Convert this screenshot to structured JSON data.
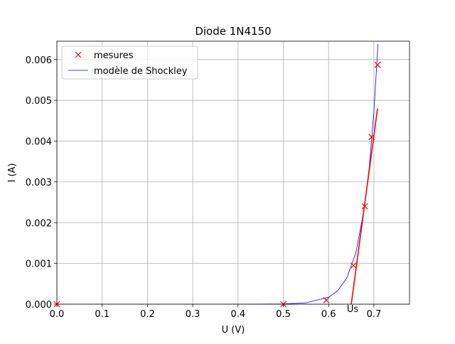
{
  "chart_data": {
    "type": "line",
    "title": "Diode 1N4150",
    "xlabel": "U (V)",
    "ylabel": "I (A)",
    "xlim": [
      0,
      0.7786
    ],
    "ylim": [
      0,
      0.00645
    ],
    "xticks": [
      {
        "value": 0,
        "label": "0.0"
      },
      0.1,
      0.2,
      0.3,
      0.4,
      0.5,
      0.6,
      0.7
    ],
    "yticks": [
      {
        "value": 0,
        "label": "0.000"
      },
      0.001,
      0.002,
      0.003,
      0.004,
      0.005,
      0.006
    ],
    "grid": true,
    "legend": "upper left",
    "series": [
      {
        "name": "mesures",
        "color": "#ff0000",
        "marker": "x",
        "line": false,
        "x": [
          0,
          0.5,
          0.595,
          0.655,
          0.68,
          0.695,
          0.708
        ],
        "values": [
          0,
          0,
          0.0001,
          0.00095,
          0.0024,
          0.0041,
          0.00587
        ]
      },
      {
        "name": "modèle de Shockley",
        "color": "#0000ff",
        "marker": null,
        "line": true,
        "width": 0.8,
        "x": [
          0,
          0.1,
          0.2,
          0.3,
          0.4,
          0.5,
          0.55,
          0.6,
          0.62,
          0.64,
          0.66,
          0.68,
          0.69,
          0.7,
          0.709
        ],
        "values": [
          0,
          0,
          0,
          0,
          0,
          6e-06,
          3.2e-05,
          0.00017,
          0.00033,
          0.00064,
          0.00125,
          0.00243,
          0.00339,
          0.00472,
          0.00638
        ]
      },
      {
        "color": "#ff0000",
        "marker": null,
        "line": true,
        "width": 1.6,
        "x": [
          0.65,
          0.708
        ],
        "values": [
          0,
          0.0048
        ]
      }
    ],
    "annotation": "Us"
  }
}
